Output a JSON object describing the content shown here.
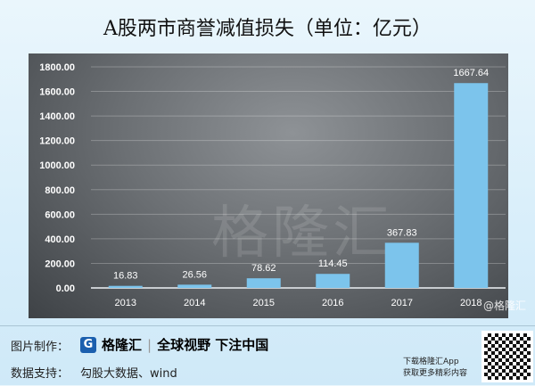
{
  "chart_data": {
    "type": "bar",
    "title": "A股两市商誉减值损失（单位：亿元）",
    "categories": [
      "2013",
      "2014",
      "2015",
      "2016",
      "2017",
      "2018"
    ],
    "values": [
      16.83,
      26.56,
      78.62,
      114.45,
      367.83,
      1667.64
    ],
    "data_labels": [
      "16.83",
      "26.56",
      "78.62",
      "114.45",
      "367.83",
      "1667.64"
    ],
    "yticks": [
      "0.00",
      "200.00",
      "400.00",
      "600.00",
      "800.00",
      "1000.00",
      "1200.00",
      "1400.00",
      "1600.00",
      "1800.00"
    ],
    "ylim": [
      0,
      1800
    ],
    "grid": true,
    "bar_color": "#7cc4ec"
  },
  "watermark": {
    "center": "格隆汇",
    "url": "www.gelonghui.com",
    "corner": "@格隆汇"
  },
  "footer": {
    "made_by_label": "图片制作：",
    "logo_text": "格隆汇",
    "slogan": "全球视野 下注中国",
    "source_label": "数据支持：",
    "source": "勾股大数据、wind",
    "app_line1": "下载格隆汇App",
    "app_line2": "获取更多精彩内容"
  }
}
